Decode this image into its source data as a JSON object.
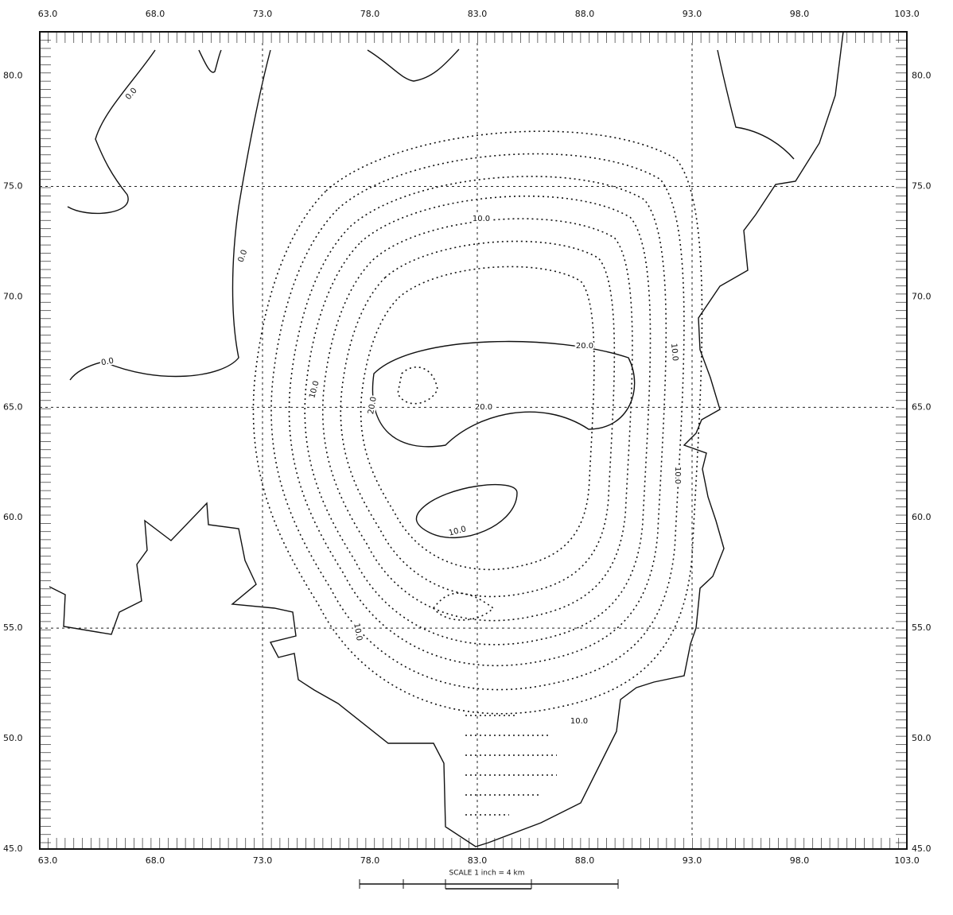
{
  "map": {
    "x_axis": {
      "lim": [
        63,
        103
      ],
      "ticks": [
        {
          "value": 63,
          "label": "63.0"
        },
        {
          "value": 68,
          "label": "68.0"
        },
        {
          "value": 73,
          "label": "73.0"
        },
        {
          "value": 78,
          "label": "78.0"
        },
        {
          "value": 83,
          "label": "83.0"
        },
        {
          "value": 88,
          "label": "88.0"
        },
        {
          "value": 93,
          "label": "93.0"
        },
        {
          "value": 98,
          "label": "98.0"
        },
        {
          "value": 103,
          "label": "103.0"
        }
      ]
    },
    "y_axis": {
      "lim": [
        45,
        82
      ],
      "ticks": [
        {
          "value": 45,
          "label": "45.0"
        },
        {
          "value": 50,
          "label": "50.0"
        },
        {
          "value": 55,
          "label": "55.0"
        },
        {
          "value": 60,
          "label": "60.0"
        },
        {
          "value": 65,
          "label": "65.0"
        },
        {
          "value": 70,
          "label": "70.0"
        },
        {
          "value": 75,
          "label": "75.0"
        },
        {
          "value": 80,
          "label": "80.0"
        }
      ]
    },
    "contour_labels": [
      "0.0",
      "0.0",
      "0.0",
      "10.0",
      "20.0",
      "20.0",
      "20.0",
      "10.0",
      "10.0",
      "10.0",
      "10.0",
      "10.0",
      "10.0"
    ],
    "scale": "SCALE 1 inch = 4 km"
  }
}
